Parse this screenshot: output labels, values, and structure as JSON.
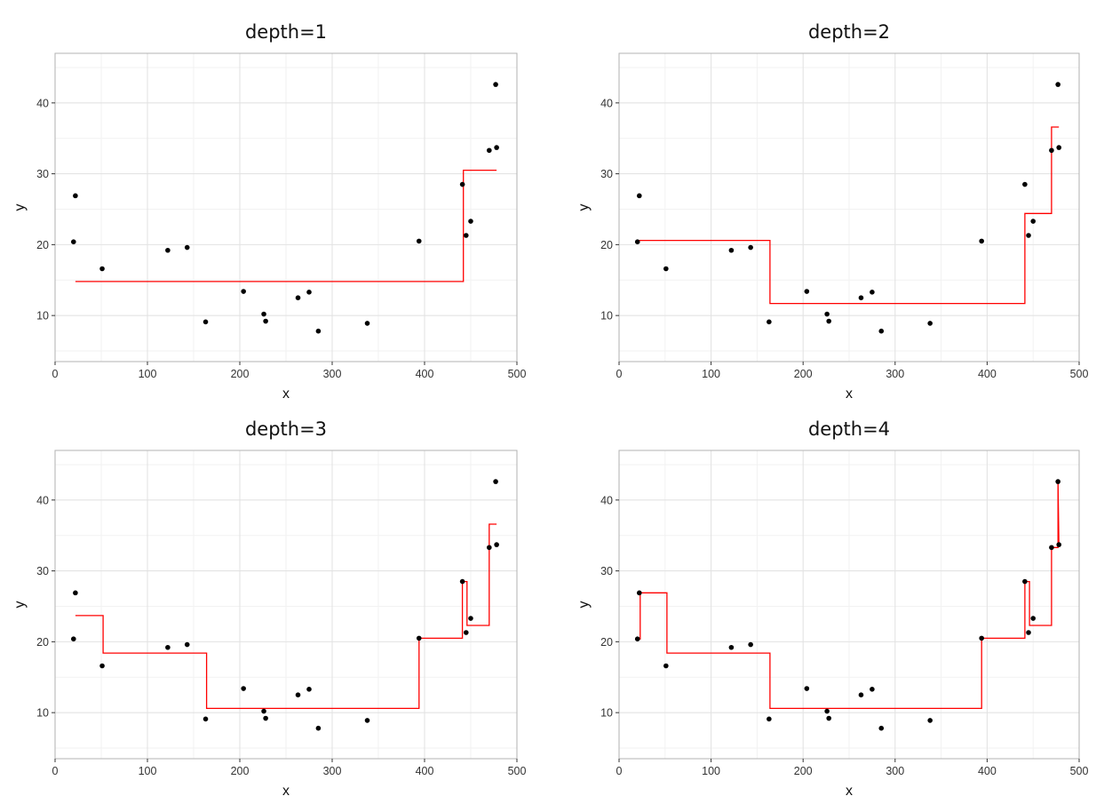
{
  "chart_data": [
    {
      "type": "scatter",
      "title": "depth=1",
      "xlabel": "x",
      "ylabel": "y",
      "xlim": [
        0,
        500
      ],
      "ylim": [
        3.5,
        47
      ],
      "xticks": [
        0,
        100,
        200,
        300,
        400,
        500
      ],
      "yticks": [
        10,
        20,
        30,
        40
      ],
      "grid": true,
      "legend": "none",
      "point_color": "#000000",
      "line_color": "#ff0000",
      "points": {
        "x": [
          20,
          22,
          51,
          122,
          143,
          163,
          204,
          226,
          228,
          263,
          275,
          285,
          338,
          394,
          441,
          445,
          450,
          470,
          477,
          478
        ],
        "y": [
          20.4,
          26.9,
          16.6,
          19.2,
          19.6,
          9.1,
          13.4,
          10.2,
          9.2,
          12.5,
          13.3,
          7.8,
          8.9,
          20.5,
          28.5,
          21.3,
          23.3,
          33.3,
          42.6,
          33.7
        ]
      },
      "step_fit": {
        "x": [
          22,
          442,
          442,
          478
        ],
        "y": [
          14.8,
          14.8,
          30.5,
          30.5
        ]
      }
    },
    {
      "type": "scatter",
      "title": "depth=2",
      "xlabel": "x",
      "ylabel": "y",
      "xlim": [
        0,
        500
      ],
      "ylim": [
        3.5,
        47
      ],
      "xticks": [
        0,
        100,
        200,
        300,
        400,
        500
      ],
      "yticks": [
        10,
        20,
        30,
        40
      ],
      "grid": true,
      "legend": "none",
      "point_color": "#000000",
      "line_color": "#ff0000",
      "points": {
        "x": [
          20,
          22,
          51,
          122,
          143,
          163,
          204,
          226,
          228,
          263,
          275,
          285,
          338,
          394,
          441,
          445,
          450,
          470,
          477,
          478
        ],
        "y": [
          20.4,
          26.9,
          16.6,
          19.2,
          19.6,
          9.1,
          13.4,
          10.2,
          9.2,
          12.5,
          13.3,
          7.8,
          8.9,
          20.5,
          28.5,
          21.3,
          23.3,
          33.3,
          42.6,
          33.7
        ]
      },
      "step_fit": {
        "x": [
          22,
          164,
          164,
          441,
          441,
          470,
          470,
          478
        ],
        "y": [
          20.6,
          20.6,
          11.7,
          11.7,
          24.4,
          24.4,
          36.6,
          36.6
        ]
      }
    },
    {
      "type": "scatter",
      "title": "depth=3",
      "xlabel": "x",
      "ylabel": "y",
      "xlim": [
        0,
        500
      ],
      "ylim": [
        3.5,
        47
      ],
      "xticks": [
        0,
        100,
        200,
        300,
        400,
        500
      ],
      "yticks": [
        10,
        20,
        30,
        40
      ],
      "grid": true,
      "legend": "none",
      "point_color": "#000000",
      "line_color": "#ff0000",
      "points": {
        "x": [
          20,
          22,
          51,
          122,
          143,
          163,
          204,
          226,
          228,
          263,
          275,
          285,
          338,
          394,
          441,
          445,
          450,
          470,
          477,
          478
        ],
        "y": [
          20.4,
          26.9,
          16.6,
          19.2,
          19.6,
          9.1,
          13.4,
          10.2,
          9.2,
          12.5,
          13.3,
          7.8,
          8.9,
          20.5,
          28.5,
          21.3,
          23.3,
          33.3,
          42.6,
          33.7
        ]
      },
      "step_fit": {
        "x": [
          22,
          52,
          52,
          164,
          164,
          394,
          394,
          441,
          441,
          446,
          446,
          470,
          470,
          478
        ],
        "y": [
          23.7,
          23.7,
          18.4,
          18.4,
          10.6,
          10.6,
          20.5,
          20.5,
          28.5,
          28.5,
          22.3,
          22.3,
          36.6,
          36.6
        ]
      }
    },
    {
      "type": "scatter",
      "title": "depth=4",
      "xlabel": "x",
      "ylabel": "y",
      "xlim": [
        0,
        500
      ],
      "ylim": [
        3.5,
        47
      ],
      "xticks": [
        0,
        100,
        200,
        300,
        400,
        500
      ],
      "yticks": [
        10,
        20,
        30,
        40
      ],
      "grid": true,
      "legend": "none",
      "point_color": "#000000",
      "line_color": "#ff0000",
      "points": {
        "x": [
          20,
          22,
          51,
          122,
          143,
          163,
          204,
          226,
          228,
          263,
          275,
          285,
          338,
          394,
          441,
          445,
          450,
          470,
          477,
          478
        ],
        "y": [
          20.4,
          26.9,
          16.6,
          19.2,
          19.6,
          9.1,
          13.4,
          10.2,
          9.2,
          12.5,
          13.3,
          7.8,
          8.9,
          20.5,
          28.5,
          21.3,
          23.3,
          33.3,
          42.6,
          33.7
        ]
      },
      "step_fit": {
        "x": [
          21,
          21,
          23,
          23,
          52,
          52,
          164,
          164,
          394,
          394,
          441,
          441,
          446,
          446,
          470,
          470,
          477,
          477,
          478
        ],
        "y": [
          20.4,
          20.4,
          20.4,
          26.9,
          26.9,
          18.4,
          18.4,
          10.6,
          10.6,
          20.5,
          20.5,
          28.5,
          28.5,
          22.3,
          22.3,
          33.3,
          33.3,
          42.6,
          33.7
        ]
      }
    }
  ]
}
